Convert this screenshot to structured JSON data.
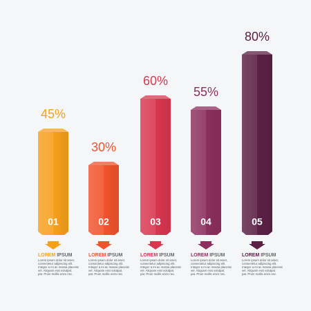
{
  "chart_data": {
    "type": "bar",
    "categories": [
      "01",
      "02",
      "03",
      "04",
      "05"
    ],
    "values": [
      45,
      30,
      60,
      55,
      80
    ],
    "value_labels": [
      "45%",
      "30%",
      "60%",
      "55%",
      "80%"
    ],
    "colors": [
      "#f7a01c",
      "#f0532d",
      "#d93650",
      "#8c2f5e",
      "#5b2044"
    ],
    "captions": [
      {
        "highlight": "LOREM",
        "rest": "IPSUM",
        "lines": [
          "Lorem ipsum dolor sit amet,",
          "consectetur adipiscing elit.",
          "Integer a mi ac massa placerat",
          "vel. Aliquam erat volutpat.",
          "pat. Proin mollis enim nec."
        ]
      },
      {
        "highlight": "LOREM",
        "rest": "IPSUM",
        "lines": [
          "Lorem ipsum dolor sit amet,",
          "consectetur adipiscing elit.",
          "Integer a mi ac massa placerat",
          "vel. Aliquam erat volutpat.",
          "pat. Proin mollis enim nec."
        ]
      },
      {
        "highlight": "LOREM",
        "rest": "IPSUM",
        "lines": [
          "Lorem ipsum dolor sit amet,",
          "consectetur adipiscing elit.",
          "Integer a mi ac massa placerat",
          "vel. Aliquam erat volutpat.",
          "pat. Proin mollis enim nec."
        ]
      },
      {
        "highlight": "LOREM",
        "rest": "IPSUM",
        "lines": [
          "Lorem ipsum dolor sit amet,",
          "consectetur adipiscing elit.",
          "Integer a mi ac massa placerat",
          "vel. Aliquam erat volutpat.",
          "pat. Proin mollis enim nec."
        ]
      },
      {
        "highlight": "LOREM",
        "rest": "IPSUM",
        "lines": [
          "Lorem ipsum dolor sit amet,",
          "consectetur adipiscing elit.",
          "Integer a mi ac massa placerat",
          "vel. Aliquam erat volutpat.",
          "pat. Proin mollis enim nec."
        ]
      }
    ]
  }
}
